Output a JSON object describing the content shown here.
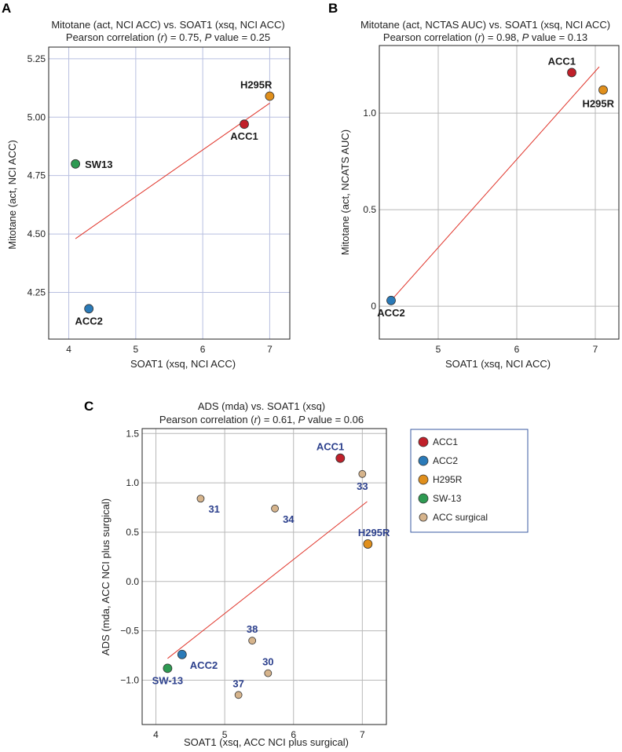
{
  "colors": {
    "ACC1": "#c0202a",
    "ACC2": "#2a7ab8",
    "H295R": "#e08f1c",
    "SW13": "#2e9a52",
    "ACC surgical": "#d6b48c",
    "fit": "#e0342a"
  },
  "chart_data": [
    {
      "type": "scatter",
      "panel": "A",
      "title_line1": "Mitotane (act, NCI ACC) vs. SOAT1 (xsq, NCI ACC)",
      "title_line2": "Pearson correlation (r) = 0.75, P value = 0.25",
      "xlabel": "SOAT1 (xsq, NCI ACC)",
      "ylabel": "Mitotane (act, NCI ACC)",
      "xlim": [
        3.7,
        7.3
      ],
      "ylim": [
        4.05,
        5.3
      ],
      "xticks": [
        4,
        5,
        6,
        7
      ],
      "xtick_labels": [
        "4",
        "5",
        "6",
        "7"
      ],
      "yticks": [
        4.25,
        4.5,
        4.75,
        5.0,
        5.25
      ],
      "ytick_labels": [
        "4.25",
        "4.50",
        "4.75",
        "5.00",
        "5.25"
      ],
      "grid": "blue",
      "points": [
        {
          "label": "H295R",
          "group": "H295R",
          "x": 7.0,
          "y": 5.09,
          "pos": "top-left",
          "label_color": "black"
        },
        {
          "label": "ACC1",
          "group": "ACC1",
          "x": 6.62,
          "y": 4.97,
          "pos": "below",
          "label_color": "black"
        },
        {
          "label": "SW13",
          "group": "SW13",
          "x": 4.1,
          "y": 4.8,
          "pos": "right",
          "label_color": "black"
        },
        {
          "label": "ACC2",
          "group": "ACC2",
          "x": 4.3,
          "y": 4.18,
          "pos": "below",
          "label_color": "black"
        }
      ],
      "fit_line": {
        "x": [
          4.1,
          7.0
        ],
        "y": [
          4.48,
          5.06
        ]
      }
    },
    {
      "type": "scatter",
      "panel": "B",
      "title_line1": "Mitotane (act, NCTAS AUC) vs. SOAT1 (xsq, NCI ACC)",
      "title_line2": "Pearson correlation (r) = 0.98, P value = 0.13",
      "xlabel": "SOAT1 (xsq, NCI ACC)",
      "ylabel": "Mitotane (act, NCATS AUC)",
      "xlim": [
        4.25,
        7.3
      ],
      "ylim": [
        -0.17,
        1.35
      ],
      "xticks": [
        5,
        6,
        7
      ],
      "xtick_labels": [
        "5",
        "6",
        "7"
      ],
      "yticks": [
        0,
        0.5,
        1.0
      ],
      "ytick_labels": [
        "0",
        "0.5",
        "1.0"
      ],
      "grid": "gray",
      "points": [
        {
          "label": "ACC1",
          "group": "ACC1",
          "x": 6.7,
          "y": 1.21,
          "pos": "top-left",
          "label_color": "black"
        },
        {
          "label": "H295R",
          "group": "H295R",
          "x": 7.1,
          "y": 1.12,
          "pos": "below-left",
          "label_color": "black"
        },
        {
          "label": "ACC2",
          "group": "ACC2",
          "x": 4.4,
          "y": 0.03,
          "pos": "below",
          "label_color": "black"
        }
      ],
      "fit_line": {
        "x": [
          4.4,
          7.05
        ],
        "y": [
          0.03,
          1.24
        ]
      }
    },
    {
      "type": "scatter",
      "panel": "C",
      "title_line1": "ADS (mda) vs. SOAT1 (xsq)",
      "title_line2": "Pearson correlation (r) = 0.61, P value = 0.06",
      "xlabel": "SOAT1 (xsq, ACC NCI plus surgical)",
      "ylabel": "ADS (mda, ACC NCI plus surgical)",
      "xlim": [
        3.8,
        7.35
      ],
      "ylim": [
        -1.45,
        1.55
      ],
      "xticks": [
        4,
        5,
        6,
        7
      ],
      "xtick_labels": [
        "4",
        "5",
        "6",
        "7"
      ],
      "yticks": [
        -1.0,
        -0.5,
        0.0,
        0.5,
        1.0,
        1.5
      ],
      "ytick_labels": [
        "−1.0",
        "−0.5",
        "0.0",
        "0.5",
        "1.0",
        "1.5"
      ],
      "grid": "gray",
      "points": [
        {
          "label": "ACC1",
          "group": "ACC1",
          "x": 6.68,
          "y": 1.25,
          "pos": "top-left",
          "label_color": "blue"
        },
        {
          "label": "33",
          "group": "ACC surgical",
          "x": 7.0,
          "y": 1.09,
          "pos": "below",
          "label_color": "blue"
        },
        {
          "label": "31",
          "group": "ACC surgical",
          "x": 4.65,
          "y": 0.84,
          "pos": "below-right",
          "label_color": "blue"
        },
        {
          "label": "34",
          "group": "ACC surgical",
          "x": 5.73,
          "y": 0.74,
          "pos": "below-right",
          "label_color": "blue"
        },
        {
          "label": "H295R",
          "group": "H295R",
          "x": 7.08,
          "y": 0.38,
          "pos": "top-left",
          "label_color": "blue"
        },
        {
          "label": "38",
          "group": "ACC surgical",
          "x": 5.4,
          "y": -0.6,
          "pos": "above",
          "label_color": "blue"
        },
        {
          "label": "ACC2",
          "group": "ACC2",
          "x": 4.38,
          "y": -0.74,
          "pos": "below-right",
          "label_color": "blue"
        },
        {
          "label": "SW-13",
          "group": "SW13",
          "x": 4.17,
          "y": -0.88,
          "pos": "below",
          "label_color": "blue"
        },
        {
          "label": "30",
          "group": "ACC surgical",
          "x": 5.63,
          "y": -0.93,
          "pos": "above",
          "label_color": "blue"
        },
        {
          "label": "37",
          "group": "ACC surgical",
          "x": 5.2,
          "y": -1.15,
          "pos": "above",
          "label_color": "blue"
        }
      ],
      "fit_line": {
        "x": [
          4.17,
          7.07
        ],
        "y": [
          -0.78,
          0.81
        ]
      },
      "legend": {
        "position": "right",
        "entries": [
          {
            "label": "ACC1",
            "group": "ACC1"
          },
          {
            "label": "ACC2",
            "group": "ACC2"
          },
          {
            "label": "H295R",
            "group": "H295R"
          },
          {
            "label": "SW-13",
            "group": "SW13"
          },
          {
            "label": "ACC surgical",
            "group": "ACC surgical"
          }
        ]
      }
    }
  ]
}
